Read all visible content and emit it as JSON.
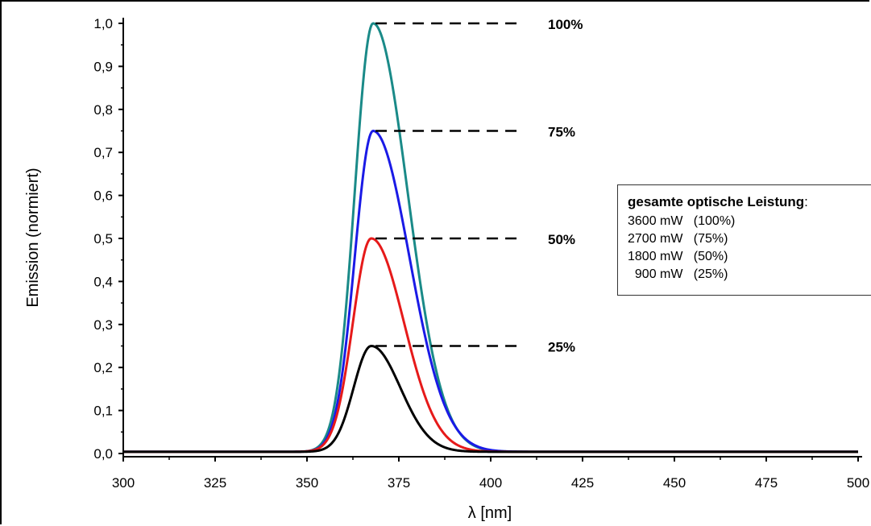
{
  "chart_data": {
    "type": "line",
    "xlabel": "λ [nm]",
    "ylabel": "Emission (normiert)",
    "xlim": [
      300,
      500
    ],
    "ylim": [
      0.0,
      1.0
    ],
    "x_ticks": [
      "300",
      "325",
      "350",
      "375",
      "400",
      "425",
      "450",
      "475",
      "500"
    ],
    "y_ticks": [
      "0,0",
      "0,1",
      "0,2",
      "0,3",
      "0,4",
      "0,5",
      "0,6",
      "0,7",
      "0,8",
      "0,9",
      "1,0"
    ],
    "grid": false,
    "series": [
      {
        "peak_x": 368,
        "peak_y": 1.0,
        "color": "#1a8a88",
        "left_width": 5.0,
        "right_width": 9.5
      },
      {
        "peak_x": 368,
        "peak_y": 0.75,
        "color": "#1a1ae6",
        "left_width": 5.0,
        "right_width": 10.0
      },
      {
        "peak_x": 367.5,
        "peak_y": 0.5,
        "color": "#e61a1a",
        "left_width": 5.0,
        "right_width": 9.0
      },
      {
        "peak_x": 367.5,
        "peak_y": 0.25,
        "color": "#000000",
        "left_width": 4.8,
        "right_width": 8.0
      }
    ],
    "annotations": [
      {
        "text": "100%",
        "y": 1.0
      },
      {
        "text": "75%",
        "y": 0.75
      },
      {
        "text": "50%",
        "y": 0.5
      },
      {
        "text": "25%",
        "y": 0.25
      }
    ],
    "legend": {
      "title": "gesamte optische Leistung",
      "title_suffix": ":",
      "placement": "right",
      "entries": [
        "3600 mW   (100%)",
        "2700 mW   (75%)",
        "1800 mW   (50%)",
        "  900 mW   (25%)"
      ]
    }
  }
}
